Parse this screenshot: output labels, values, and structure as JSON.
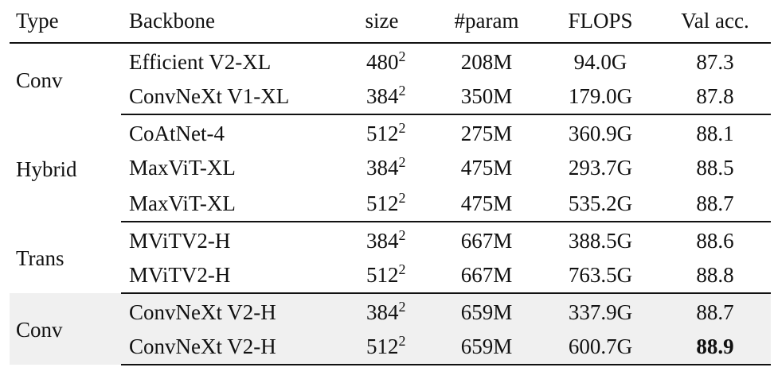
{
  "table": {
    "headers": {
      "type": "Type",
      "backbone": "Backbone",
      "size": "size",
      "param": "#param",
      "flops": "FLOPS",
      "acc": "Val acc."
    },
    "groups": [
      {
        "type": "Conv",
        "rows": [
          {
            "backbone": "Efficient V2-XL",
            "size": "480",
            "exp": "2",
            "param": "208M",
            "flops": "94.0G",
            "acc": "87.3"
          },
          {
            "backbone": "ConvNeXt V1-XL",
            "size": "384",
            "exp": "2",
            "param": "350M",
            "flops": "179.0G",
            "acc": "87.8"
          }
        ]
      },
      {
        "type": "Hybrid",
        "rows": [
          {
            "backbone": "CoAtNet-4",
            "size": "512",
            "exp": "2",
            "param": "275M",
            "flops": "360.9G",
            "acc": "88.1"
          },
          {
            "backbone": "MaxViT-XL",
            "size": "384",
            "exp": "2",
            "param": "475M",
            "flops": "293.7G",
            "acc": "88.5"
          },
          {
            "backbone": "MaxViT-XL",
            "size": "512",
            "exp": "2",
            "param": "475M",
            "flops": "535.2G",
            "acc": "88.7"
          }
        ]
      },
      {
        "type": "Trans",
        "rows": [
          {
            "backbone": "MViTV2-H",
            "size": "384",
            "exp": "2",
            "param": "667M",
            "flops": "388.5G",
            "acc": "88.6"
          },
          {
            "backbone": "MViTV2-H",
            "size": "512",
            "exp": "2",
            "param": "667M",
            "flops": "763.5G",
            "acc": "88.8"
          }
        ]
      },
      {
        "type": "Conv",
        "shaded": true,
        "rows": [
          {
            "backbone": "ConvNeXt V2-H",
            "size": "384",
            "exp": "2",
            "param": "659M",
            "flops": "337.9G",
            "acc": "88.7"
          },
          {
            "backbone": "ConvNeXt V2-H",
            "size": "512",
            "exp": "2",
            "param": "659M",
            "flops": "600.7G",
            "acc": "88.9",
            "acc_bold": true
          }
        ]
      }
    ],
    "colors": {
      "text": "#111111",
      "rule": "#111111",
      "shade": "#f0f0f0"
    }
  }
}
